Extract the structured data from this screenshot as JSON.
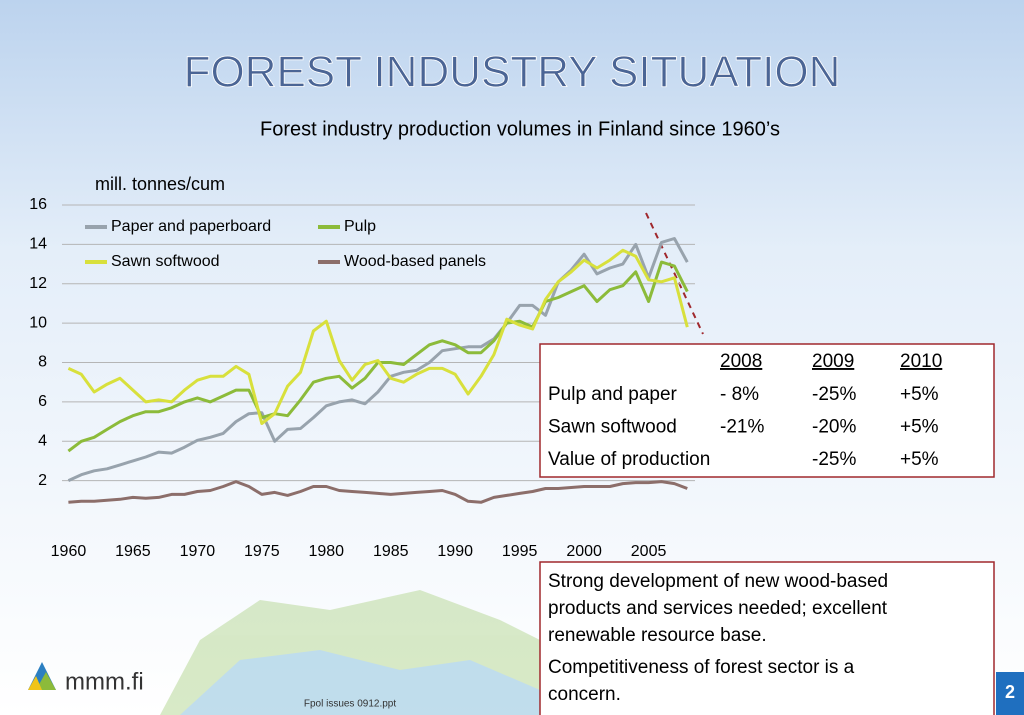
{
  "title": "FOREST INDUSTRY SITUATION",
  "subtitle": "Forest industry production volumes in Finland since 1960’s",
  "chart_data": {
    "type": "line",
    "y_label": "mill. tonnes/cum",
    "x": [
      1960,
      1961,
      1962,
      1963,
      1964,
      1965,
      1966,
      1967,
      1968,
      1969,
      1970,
      1971,
      1972,
      1973,
      1974,
      1975,
      1976,
      1977,
      1978,
      1979,
      1980,
      1981,
      1982,
      1983,
      1984,
      1985,
      1986,
      1987,
      1988,
      1989,
      1990,
      1991,
      1992,
      1993,
      1994,
      1995,
      1996,
      1997,
      1998,
      1999,
      2000,
      2001,
      2002,
      2003,
      2004,
      2005,
      2006,
      2007,
      2008
    ],
    "series": [
      {
        "name": "Paper  and paperboard",
        "color": "#98a3ad",
        "values": [
          2.0,
          2.3,
          2.5,
          2.6,
          2.8,
          3.0,
          3.2,
          3.45,
          3.4,
          3.7,
          4.05,
          4.2,
          4.4,
          5.0,
          5.4,
          5.45,
          4.0,
          4.6,
          4.65,
          5.2,
          5.8,
          6.0,
          6.1,
          5.9,
          6.5,
          7.3,
          7.5,
          7.6,
          8.0,
          8.6,
          8.7,
          8.8,
          8.8,
          9.2,
          10.0,
          10.9,
          10.9,
          10.4,
          12.1,
          12.7,
          13.5,
          12.5,
          12.8,
          13.0,
          14.0,
          12.3,
          14.1,
          14.3,
          13.1
        ]
      },
      {
        "name": "Pulp",
        "color": "#8cbb3a",
        "values": [
          3.5,
          4.0,
          4.2,
          4.6,
          5.0,
          5.3,
          5.5,
          5.5,
          5.7,
          6.0,
          6.2,
          6.0,
          6.3,
          6.6,
          6.6,
          5.2,
          5.4,
          5.3,
          6.1,
          7.0,
          7.2,
          7.3,
          6.7,
          7.2,
          8.0,
          8.0,
          7.9,
          8.4,
          8.9,
          9.1,
          8.9,
          8.5,
          8.5,
          9.1,
          10.0,
          10.1,
          9.8,
          11.1,
          11.3,
          11.6,
          11.9,
          11.1,
          11.7,
          11.9,
          12.6,
          11.1,
          13.1,
          12.9,
          11.6
        ]
      },
      {
        "name": "Sawn softwood",
        "color": "#d8e03c",
        "values": [
          7.7,
          7.4,
          6.5,
          6.9,
          7.2,
          6.6,
          6.0,
          6.1,
          6.0,
          6.6,
          7.1,
          7.3,
          7.3,
          7.8,
          7.4,
          4.9,
          5.4,
          6.8,
          7.5,
          9.6,
          10.1,
          8.1,
          7.1,
          7.9,
          8.1,
          7.2,
          7.0,
          7.4,
          7.7,
          7.7,
          7.4,
          6.4,
          7.3,
          8.4,
          10.2,
          9.9,
          9.7,
          11.2,
          12.1,
          12.6,
          13.2,
          12.8,
          13.2,
          13.7,
          13.4,
          12.2,
          12.1,
          12.3,
          9.8
        ]
      },
      {
        "name": "Wood-based panels",
        "color": "#8c6e6a",
        "values": [
          0.9,
          0.95,
          0.95,
          1.0,
          1.05,
          1.15,
          1.1,
          1.15,
          1.3,
          1.3,
          1.45,
          1.5,
          1.7,
          1.95,
          1.7,
          1.3,
          1.4,
          1.25,
          1.45,
          1.7,
          1.7,
          1.5,
          1.45,
          1.4,
          1.35,
          1.3,
          1.35,
          1.4,
          1.45,
          1.5,
          1.3,
          0.95,
          0.9,
          1.15,
          1.25,
          1.35,
          1.45,
          1.6,
          1.6,
          1.65,
          1.7,
          1.7,
          1.7,
          1.85,
          1.9,
          1.9,
          1.95,
          1.85,
          1.6
        ]
      }
    ],
    "xlim": [
      1959.5,
      2008.6
    ],
    "xticks": [
      1960,
      1965,
      1970,
      1975,
      1980,
      1985,
      1990,
      1995,
      2000,
      2005
    ],
    "ylim": [
      0,
      16
    ],
    "yticks": [
      2,
      4,
      6,
      8,
      10,
      12,
      14,
      16
    ],
    "grid": true
  },
  "table": {
    "header": [
      "2008",
      "2009",
      "2010"
    ],
    "rows": [
      [
        "Pulp and paper",
        "- 8%",
        "-25%",
        "+5%"
      ],
      [
        "Sawn softwood",
        "-21%",
        "-20%",
        "+5%"
      ],
      [
        "Value of production",
        null,
        "-25%",
        "+5%"
      ]
    ]
  },
  "notes": [
    "Strong development of new wood-based products and services needed; excellent renewable resource base.",
    "Competitiveness of forest sector is a concern."
  ],
  "logo": "mmm.fi",
  "footer": "Fpol issues 0912.ppt",
  "page_number": "2"
}
